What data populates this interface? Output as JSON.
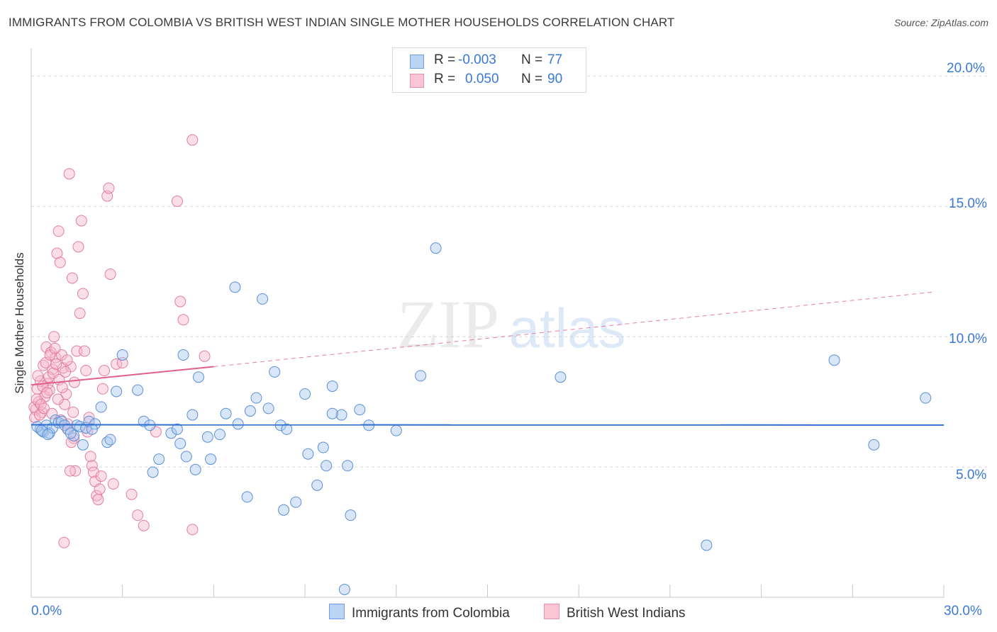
{
  "title": "IMMIGRANTS FROM COLOMBIA VS BRITISH WEST INDIAN SINGLE MOTHER HOUSEHOLDS CORRELATION CHART",
  "source": "Source: ZipAtlas.com",
  "watermark": {
    "zip": "ZIP",
    "atlas": "atlas"
  },
  "legend": {
    "rows": [
      {
        "r_label": "R =",
        "r_value": "-0.003",
        "n_label": "N =",
        "n_value": "77"
      },
      {
        "r_label": "R =",
        "r_value": "0.050",
        "n_label": "N =",
        "n_value": "90"
      }
    ]
  },
  "colors": {
    "blue_fill": "#a8c8f0",
    "blue_stroke": "#5b8fd6",
    "blue_line": "#2f6fd0",
    "pink_fill": "#f6b8cb",
    "pink_stroke": "#e27ea0",
    "pink_line": "#e0608c",
    "tick_text": "#3a78d4",
    "grid": "#d9d9d9"
  },
  "chart_data": {
    "type": "scatter",
    "xlabel": "",
    "ylabel": "Single Mother Households",
    "xlim": [
      0,
      30
    ],
    "ylim": [
      0,
      20.8
    ],
    "x_tick_labels": [
      "0.0%",
      "30.0%"
    ],
    "y_ticks": [
      5,
      10,
      15,
      20
    ],
    "y_tick_labels": [
      "5.0%",
      "10.0%",
      "15.0%",
      "20.0%"
    ],
    "series": [
      {
        "name": "Immigrants from Colombia",
        "color": "blue",
        "R": -0.003,
        "N": 77,
        "trend": {
          "x": [
            0,
            30
          ],
          "y": [
            6.62,
            6.61
          ],
          "style": "solid"
        },
        "points": [
          [
            0.3,
            6.45
          ],
          [
            0.4,
            6.35
          ],
          [
            0.5,
            6.6
          ],
          [
            0.6,
            6.3
          ],
          [
            0.7,
            6.5
          ],
          [
            0.8,
            6.8
          ],
          [
            0.9,
            6.7
          ],
          [
            1.0,
            6.75
          ],
          [
            1.1,
            6.6
          ],
          [
            1.2,
            6.45
          ],
          [
            1.4,
            6.2
          ],
          [
            1.5,
            6.6
          ],
          [
            1.6,
            6.55
          ],
          [
            1.7,
            5.85
          ],
          [
            1.8,
            6.5
          ],
          [
            1.9,
            6.75
          ],
          [
            2.1,
            6.65
          ],
          [
            2.3,
            7.3
          ],
          [
            2.5,
            5.95
          ],
          [
            2.6,
            6.05
          ],
          [
            2.8,
            7.9
          ],
          [
            3.0,
            9.3
          ],
          [
            3.5,
            7.95
          ],
          [
            3.7,
            6.75
          ],
          [
            3.9,
            6.6
          ],
          [
            4.0,
            4.8
          ],
          [
            4.2,
            5.3
          ],
          [
            4.6,
            6.3
          ],
          [
            4.8,
            6.45
          ],
          [
            4.9,
            5.9
          ],
          [
            5.1,
            5.4
          ],
          [
            5.3,
            7.0
          ],
          [
            5.4,
            4.9
          ],
          [
            5.5,
            8.45
          ],
          [
            5.8,
            6.15
          ],
          [
            5.9,
            5.3
          ],
          [
            6.2,
            6.25
          ],
          [
            6.4,
            7.05
          ],
          [
            6.8,
            6.65
          ],
          [
            7.1,
            3.85
          ],
          [
            7.2,
            7.15
          ],
          [
            7.4,
            7.65
          ],
          [
            7.6,
            11.45
          ],
          [
            7.8,
            7.25
          ],
          [
            8.0,
            8.65
          ],
          [
            8.2,
            6.6
          ],
          [
            8.3,
            3.35
          ],
          [
            8.4,
            6.45
          ],
          [
            8.7,
            3.65
          ],
          [
            9.0,
            7.8
          ],
          [
            9.1,
            5.5
          ],
          [
            9.4,
            4.3
          ],
          [
            9.6,
            5.75
          ],
          [
            9.7,
            5.05
          ],
          [
            9.9,
            8.1
          ],
          [
            10.2,
            7.0
          ],
          [
            10.3,
            0.3
          ],
          [
            10.4,
            5.05
          ],
          [
            10.5,
            3.15
          ],
          [
            10.8,
            7.2
          ],
          [
            11.1,
            6.6
          ],
          [
            12.0,
            6.4
          ],
          [
            12.8,
            8.5
          ],
          [
            13.3,
            13.4
          ],
          [
            17.4,
            8.45
          ],
          [
            22.2,
            2.0
          ],
          [
            26.4,
            9.1
          ],
          [
            27.7,
            5.85
          ],
          [
            29.4,
            7.65
          ],
          [
            0.2,
            6.55
          ],
          [
            0.35,
            6.4
          ],
          [
            0.55,
            6.25
          ],
          [
            1.3,
            6.3
          ],
          [
            2.0,
            6.45
          ],
          [
            5.0,
            9.3
          ],
          [
            6.7,
            11.9
          ],
          [
            9.9,
            7.05
          ]
        ]
      },
      {
        "name": "British West Indians",
        "color": "pink",
        "R": 0.05,
        "N": 90,
        "trend": {
          "x": [
            0,
            6.0
          ],
          "y": [
            8.15,
            8.85
          ],
          "style": "solid",
          "extended": {
            "x": [
              6.0,
              29.7
            ],
            "y": [
              8.85,
              11.72
            ],
            "style": "dashed"
          }
        },
        "points": [
          [
            0.15,
            7.2
          ],
          [
            0.2,
            8.0
          ],
          [
            0.25,
            7.5
          ],
          [
            0.3,
            8.3
          ],
          [
            0.35,
            7.1
          ],
          [
            0.4,
            8.9
          ],
          [
            0.45,
            7.7
          ],
          [
            0.5,
            9.6
          ],
          [
            0.55,
            8.2
          ],
          [
            0.6,
            7.95
          ],
          [
            0.65,
            9.4
          ],
          [
            0.7,
            8.75
          ],
          [
            0.75,
            10.0
          ],
          [
            0.8,
            9.2
          ],
          [
            0.85,
            13.2
          ],
          [
            0.9,
            14.05
          ],
          [
            0.95,
            12.85
          ],
          [
            1.0,
            9.3
          ],
          [
            1.05,
            8.8
          ],
          [
            1.1,
            7.4
          ],
          [
            1.15,
            7.8
          ],
          [
            1.2,
            6.65
          ],
          [
            1.25,
            16.25
          ],
          [
            1.3,
            8.85
          ],
          [
            1.35,
            12.25
          ],
          [
            1.4,
            6.1
          ],
          [
            1.45,
            4.85
          ],
          [
            1.5,
            9.45
          ],
          [
            1.55,
            13.45
          ],
          [
            1.6,
            10.9
          ],
          [
            1.65,
            14.45
          ],
          [
            1.7,
            11.65
          ],
          [
            1.75,
            9.45
          ],
          [
            1.8,
            8.7
          ],
          [
            1.85,
            6.35
          ],
          [
            1.9,
            6.9
          ],
          [
            1.95,
            5.4
          ],
          [
            2.0,
            5.05
          ],
          [
            2.05,
            4.8
          ],
          [
            2.1,
            4.45
          ],
          [
            2.15,
            3.9
          ],
          [
            2.2,
            3.75
          ],
          [
            2.25,
            4.15
          ],
          [
            2.3,
            4.65
          ],
          [
            2.35,
            8.0
          ],
          [
            2.4,
            8.7
          ],
          [
            2.5,
            15.4
          ],
          [
            2.55,
            15.7
          ],
          [
            2.6,
            12.4
          ],
          [
            2.7,
            4.35
          ],
          [
            2.8,
            8.95
          ],
          [
            3.0,
            9.0
          ],
          [
            3.3,
            3.95
          ],
          [
            3.5,
            3.15
          ],
          [
            3.7,
            2.75
          ],
          [
            4.1,
            6.35
          ],
          [
            4.8,
            15.2
          ],
          [
            4.9,
            11.35
          ],
          [
            5.0,
            10.65
          ],
          [
            5.3,
            17.55
          ],
          [
            5.3,
            2.6
          ],
          [
            5.7,
            9.25
          ],
          [
            0.1,
            7.3
          ],
          [
            0.12,
            6.9
          ],
          [
            0.18,
            7.6
          ],
          [
            0.22,
            8.5
          ],
          [
            0.28,
            7.0
          ],
          [
            0.32,
            7.4
          ],
          [
            0.38,
            8.1
          ],
          [
            0.42,
            7.25
          ],
          [
            0.48,
            9.0
          ],
          [
            0.52,
            7.85
          ],
          [
            0.58,
            8.45
          ],
          [
            0.62,
            9.3
          ],
          [
            0.68,
            7.05
          ],
          [
            0.72,
            8.6
          ],
          [
            0.78,
            9.55
          ],
          [
            0.82,
            8.95
          ],
          [
            0.88,
            7.6
          ],
          [
            0.92,
            8.35
          ],
          [
            0.98,
            6.8
          ],
          [
            1.02,
            8.05
          ],
          [
            1.08,
            2.1
          ],
          [
            1.12,
            8.65
          ],
          [
            1.18,
            9.1
          ],
          [
            1.22,
            6.45
          ],
          [
            1.28,
            4.85
          ],
          [
            1.32,
            5.95
          ],
          [
            1.38,
            7.1
          ],
          [
            1.42,
            8.25
          ]
        ]
      }
    ]
  },
  "bottom_legend": [
    "Immigrants from Colombia",
    "British West Indians"
  ]
}
